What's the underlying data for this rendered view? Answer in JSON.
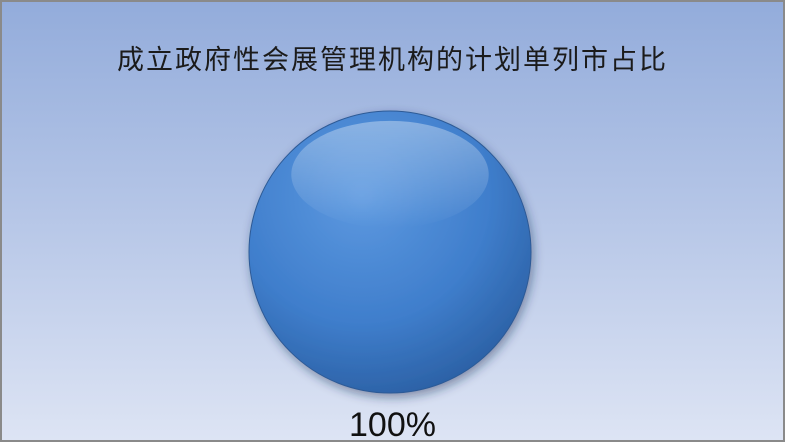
{
  "chart_data": {
    "type": "pie",
    "title": "成立政府性会展管理机构的计划单列市占比",
    "slices": [
      {
        "label": "",
        "value": 100,
        "display": "100%",
        "color": "#3f7ecc"
      }
    ]
  }
}
